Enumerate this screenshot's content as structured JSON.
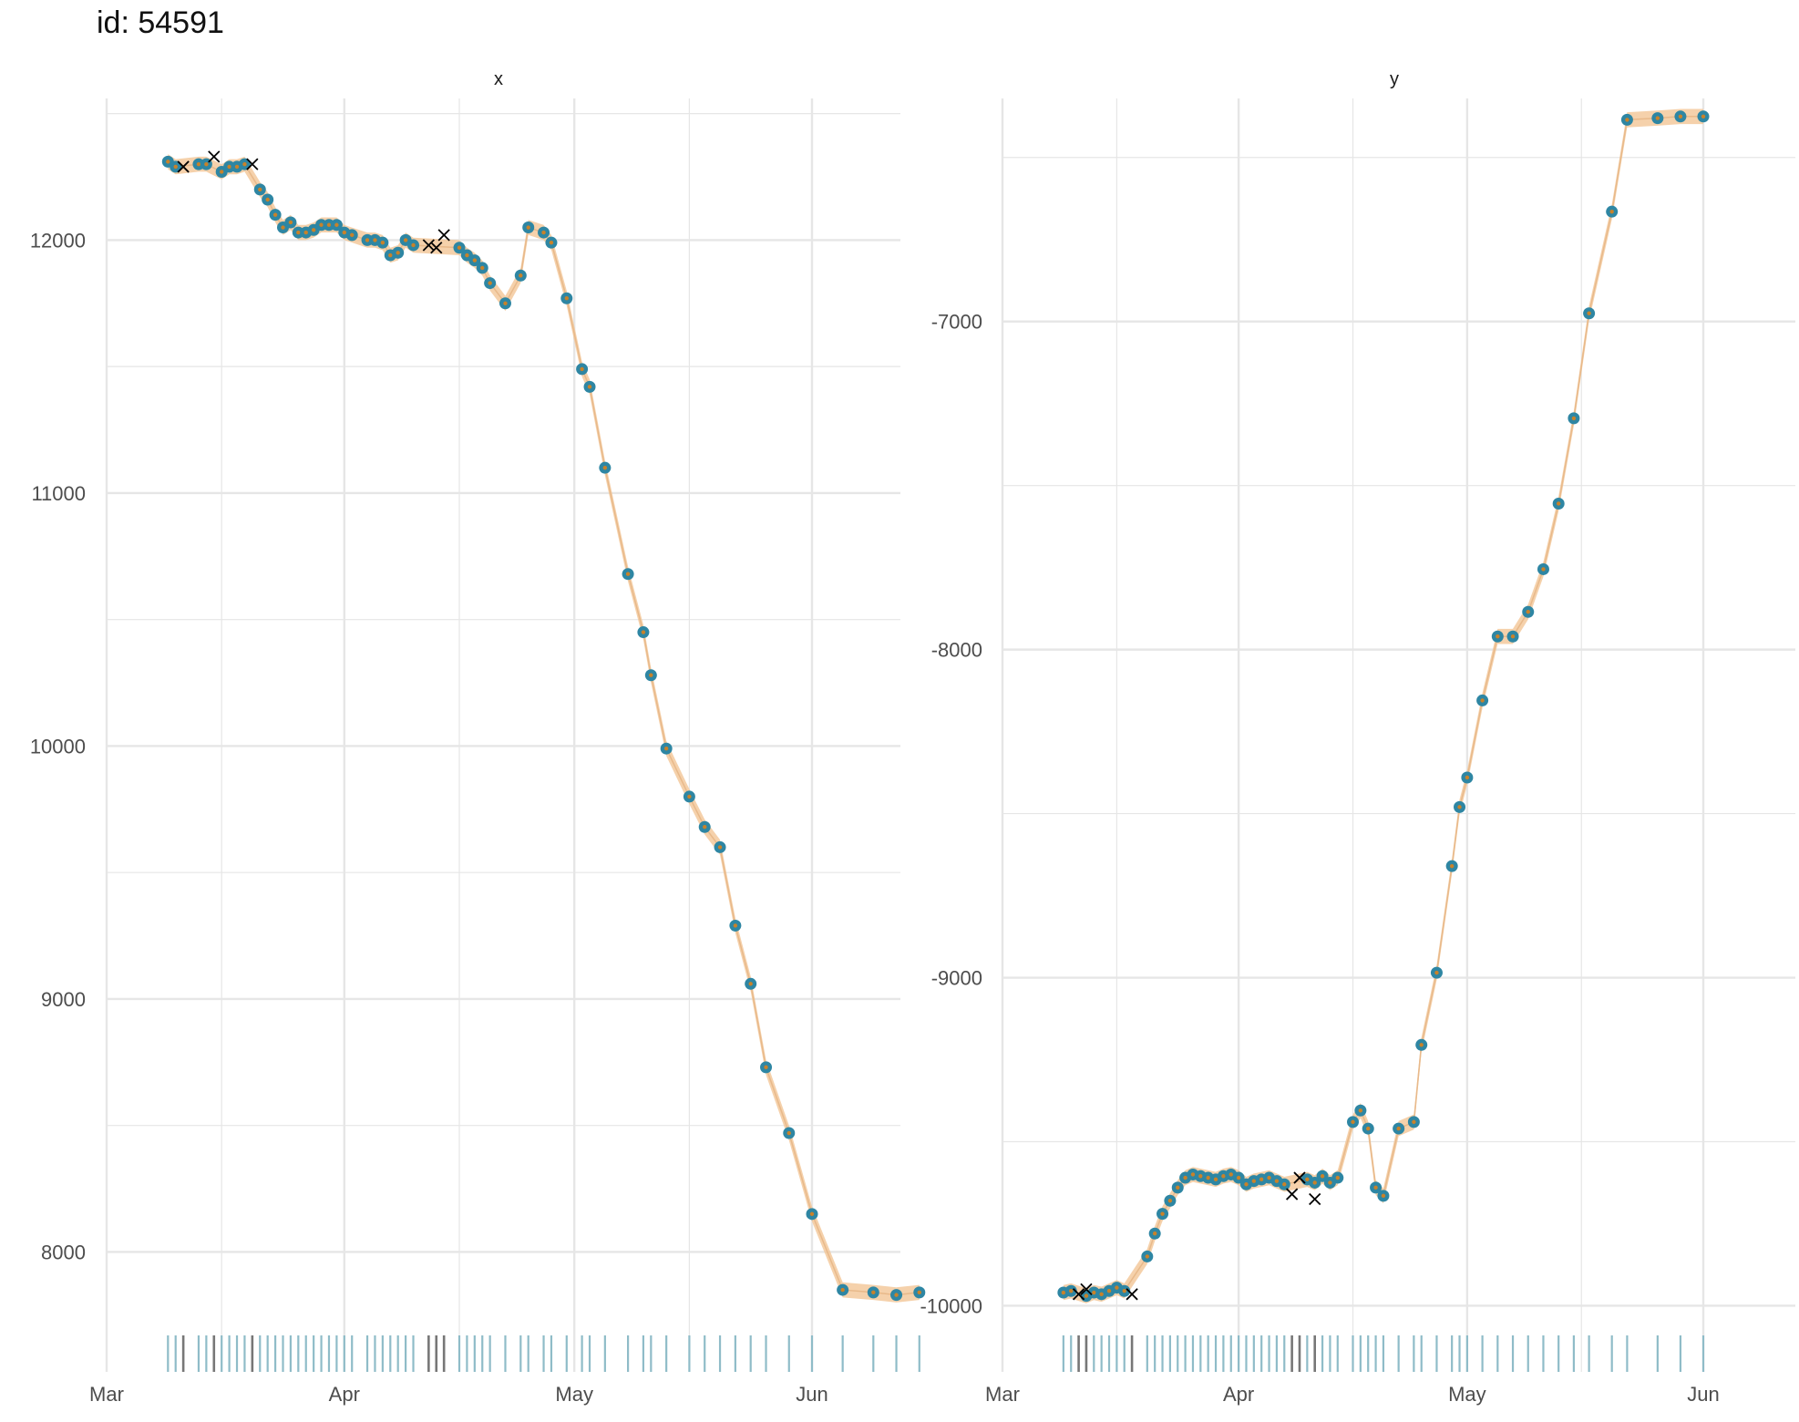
{
  "title": "id: 54591",
  "colors": {
    "point": "#2e86a3",
    "point_inner": "#c8822a",
    "ribbon": "#f2c596",
    "line": "#e8b98a",
    "rug": "#8fbcc8",
    "rug_dark": "#777777",
    "outlier": "#000000",
    "grid": "#e6e6e6"
  },
  "chart_data": [
    {
      "type": "scatter",
      "panel": "x",
      "title": "",
      "xlabel": "",
      "ylabel": "",
      "x_scale": "date",
      "x_ticks": [
        "Mar",
        "Apr",
        "May",
        "Jun"
      ],
      "y_ticks": [
        "8000",
        "9000",
        "10000",
        "11000",
        "12000"
      ],
      "ylim": [
        7580,
        12560
      ],
      "grid": true,
      "series": [
        {
          "role": "observed",
          "points": [
            [
              "2024-03-09",
              12310
            ],
            [
              "2024-03-10",
              12290
            ],
            [
              "2024-03-13",
              12300
            ],
            [
              "2024-03-14",
              12300
            ],
            [
              "2024-03-16",
              12270
            ],
            [
              "2024-03-17",
              12290
            ],
            [
              "2024-03-18",
              12290
            ],
            [
              "2024-03-19",
              12300
            ],
            [
              "2024-03-21",
              12200
            ],
            [
              "2024-03-22",
              12160
            ],
            [
              "2024-03-23",
              12100
            ],
            [
              "2024-03-24",
              12050
            ],
            [
              "2024-03-25",
              12070
            ],
            [
              "2024-03-26",
              12030
            ],
            [
              "2024-03-27",
              12030
            ],
            [
              "2024-03-28",
              12040
            ],
            [
              "2024-03-29",
              12060
            ],
            [
              "2024-03-30",
              12060
            ],
            [
              "2024-03-31",
              12060
            ],
            [
              "2024-04-01",
              12030
            ],
            [
              "2024-04-02",
              12020
            ],
            [
              "2024-04-04",
              12000
            ],
            [
              "2024-04-05",
              12000
            ],
            [
              "2024-04-06",
              11990
            ],
            [
              "2024-04-07",
              11940
            ],
            [
              "2024-04-08",
              11950
            ],
            [
              "2024-04-09",
              12000
            ],
            [
              "2024-04-10",
              11980
            ],
            [
              "2024-04-16",
              11970
            ],
            [
              "2024-04-17",
              11940
            ],
            [
              "2024-04-18",
              11920
            ],
            [
              "2024-04-19",
              11890
            ],
            [
              "2024-04-20",
              11830
            ],
            [
              "2024-04-22",
              11750
            ],
            [
              "2024-04-24",
              11860
            ],
            [
              "2024-04-25",
              12050
            ],
            [
              "2024-04-27",
              12030
            ],
            [
              "2024-04-28",
              11990
            ],
            [
              "2024-04-30",
              11770
            ],
            [
              "2024-05-02",
              11490
            ],
            [
              "2024-05-03",
              11420
            ],
            [
              "2024-05-05",
              11100
            ],
            [
              "2024-05-08",
              10680
            ],
            [
              "2024-05-10",
              10450
            ],
            [
              "2024-05-11",
              10280
            ],
            [
              "2024-05-13",
              9990
            ],
            [
              "2024-05-16",
              9800
            ],
            [
              "2024-05-18",
              9680
            ],
            [
              "2024-05-20",
              9600
            ],
            [
              "2024-05-22",
              9290
            ],
            [
              "2024-05-24",
              9060
            ],
            [
              "2024-05-26",
              8730
            ],
            [
              "2024-05-29",
              8470
            ],
            [
              "2024-06-01",
              8150
            ],
            [
              "2024-06-05",
              7850
            ],
            [
              "2024-06-09",
              7840
            ],
            [
              "2024-06-12",
              7830
            ],
            [
              "2024-06-15",
              7840
            ]
          ]
        },
        {
          "role": "outlier",
          "points": [
            [
              "2024-03-11",
              12290
            ],
            [
              "2024-03-15",
              12330
            ],
            [
              "2024-03-20",
              12300
            ],
            [
              "2024-04-12",
              11980
            ],
            [
              "2024-04-13",
              11970
            ],
            [
              "2024-04-14",
              12020
            ]
          ]
        }
      ]
    },
    {
      "type": "scatter",
      "panel": "y",
      "title": "",
      "xlabel": "",
      "ylabel": "",
      "x_scale": "date",
      "x_ticks": [
        "Mar",
        "Apr",
        "May",
        "Jun"
      ],
      "y_ticks": [
        "-10000",
        "-9000",
        "-8000",
        "-7000"
      ],
      "ylim": [
        -10160,
        -6320
      ],
      "grid": true,
      "series": [
        {
          "role": "observed",
          "points": [
            [
              "2024-03-09",
              -9960
            ],
            [
              "2024-03-10",
              -9955
            ],
            [
              "2024-03-12",
              -9970
            ],
            [
              "2024-03-13",
              -9960
            ],
            [
              "2024-03-14",
              -9965
            ],
            [
              "2024-03-15",
              -9955
            ],
            [
              "2024-03-16",
              -9945
            ],
            [
              "2024-03-17",
              -9955
            ],
            [
              "2024-03-20",
              -9850
            ],
            [
              "2024-03-21",
              -9780
            ],
            [
              "2024-03-22",
              -9720
            ],
            [
              "2024-03-23",
              -9680
            ],
            [
              "2024-03-24",
              -9640
            ],
            [
              "2024-03-25",
              -9610
            ],
            [
              "2024-03-26",
              -9600
            ],
            [
              "2024-03-27",
              -9605
            ],
            [
              "2024-03-28",
              -9610
            ],
            [
              "2024-03-29",
              -9615
            ],
            [
              "2024-03-30",
              -9605
            ],
            [
              "2024-03-31",
              -9600
            ],
            [
              "2024-04-01",
              -9610
            ],
            [
              "2024-04-02",
              -9630
            ],
            [
              "2024-04-03",
              -9620
            ],
            [
              "2024-04-04",
              -9615
            ],
            [
              "2024-04-05",
              -9610
            ],
            [
              "2024-04-06",
              -9620
            ],
            [
              "2024-04-07",
              -9630
            ],
            [
              "2024-04-10",
              -9615
            ],
            [
              "2024-04-11",
              -9625
            ],
            [
              "2024-04-12",
              -9605
            ],
            [
              "2024-04-13",
              -9625
            ],
            [
              "2024-04-14",
              -9610
            ],
            [
              "2024-04-16",
              -9440
            ],
            [
              "2024-04-17",
              -9405
            ],
            [
              "2024-04-18",
              -9460
            ],
            [
              "2024-04-19",
              -9640
            ],
            [
              "2024-04-20",
              -9665
            ],
            [
              "2024-04-22",
              -9460
            ],
            [
              "2024-04-24",
              -9440
            ],
            [
              "2024-04-25",
              -9205
            ],
            [
              "2024-04-27",
              -8985
            ],
            [
              "2024-04-29",
              -8660
            ],
            [
              "2024-04-30",
              -8480
            ],
            [
              "2024-05-01",
              -8390
            ],
            [
              "2024-05-03",
              -8155
            ],
            [
              "2024-05-05",
              -7960
            ],
            [
              "2024-05-07",
              -7960
            ],
            [
              "2024-05-09",
              -7885
            ],
            [
              "2024-05-11",
              -7755
            ],
            [
              "2024-05-13",
              -7555
            ],
            [
              "2024-05-15",
              -7295
            ],
            [
              "2024-05-17",
              -6975
            ],
            [
              "2024-05-20",
              -6665
            ],
            [
              "2024-05-22",
              -6385
            ],
            [
              "2024-05-26",
              -6380
            ],
            [
              "2024-05-29",
              -6375
            ],
            [
              "2024-06-01",
              -6375
            ]
          ]
        },
        {
          "role": "outlier",
          "points": [
            [
              "2024-03-11",
              -9965
            ],
            [
              "2024-03-12",
              -9950
            ],
            [
              "2024-03-18",
              -9965
            ],
            [
              "2024-04-08",
              -9660
            ],
            [
              "2024-04-09",
              -9610
            ],
            [
              "2024-04-11",
              -9675
            ]
          ]
        }
      ]
    }
  ]
}
